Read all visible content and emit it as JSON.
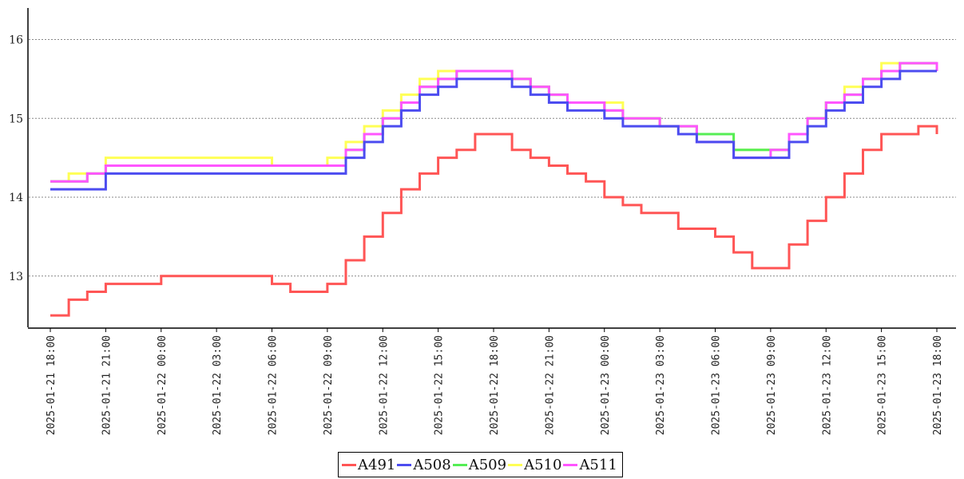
{
  "chart_data": {
    "type": "line",
    "title": "",
    "xlabel": "",
    "ylabel": "",
    "ylim": [
      12.4,
      16.4
    ],
    "yticks": [
      13,
      14,
      15,
      16
    ],
    "xticks": [
      "2025-01-21 18:00",
      "2025-01-21 21:00",
      "2025-01-22 00:00",
      "2025-01-22 03:00",
      "2025-01-22 06:00",
      "2025-01-22 09:00",
      "2025-01-22 12:00",
      "2025-01-22 15:00",
      "2025-01-22 18:00",
      "2025-01-22 21:00",
      "2025-01-23 00:00",
      "2025-01-23 03:00",
      "2025-01-23 06:00",
      "2025-01-23 09:00",
      "2025-01-23 12:00",
      "2025-01-23 15:00",
      "2025-01-23 18:00"
    ],
    "grid": "horizontal-dashed",
    "legend_position": "bottom-center",
    "series": [
      {
        "name": "A491",
        "color": "#ff5555",
        "x": [
          "2025-01-21 18:00",
          "2025-01-21 19:00",
          "2025-01-21 20:00",
          "2025-01-21 21:00",
          "2025-01-21 22:00",
          "2025-01-22 00:00",
          "2025-01-22 02:00",
          "2025-01-22 03:00",
          "2025-01-22 05:00",
          "2025-01-22 06:00",
          "2025-01-22 07:00",
          "2025-01-22 08:00",
          "2025-01-22 09:00",
          "2025-01-22 10:00",
          "2025-01-22 11:00",
          "2025-01-22 12:00",
          "2025-01-22 13:00",
          "2025-01-22 14:00",
          "2025-01-22 15:00",
          "2025-01-22 16:00",
          "2025-01-22 17:00",
          "2025-01-22 18:00",
          "2025-01-22 19:00",
          "2025-01-22 20:00",
          "2025-01-22 21:00",
          "2025-01-22 22:00",
          "2025-01-22 23:00",
          "2025-01-23 00:00",
          "2025-01-23 01:00",
          "2025-01-23 02:00",
          "2025-01-23 04:00",
          "2025-01-23 05:00",
          "2025-01-23 06:00",
          "2025-01-23 07:00",
          "2025-01-23 08:00",
          "2025-01-23 09:00",
          "2025-01-23 10:00",
          "2025-01-23 11:00",
          "2025-01-23 12:00",
          "2025-01-23 13:00",
          "2025-01-23 14:00",
          "2025-01-23 15:00",
          "2025-01-23 16:00",
          "2025-01-23 17:00",
          "2025-01-23 18:00"
        ],
        "values": [
          12.5,
          12.7,
          12.8,
          12.9,
          12.9,
          13.0,
          13.0,
          13.0,
          13.0,
          12.9,
          12.8,
          12.8,
          12.9,
          13.2,
          13.5,
          13.8,
          14.1,
          14.3,
          14.5,
          14.6,
          14.8,
          14.8,
          14.6,
          14.5,
          14.4,
          14.3,
          14.2,
          14.0,
          13.9,
          13.8,
          13.6,
          13.6,
          13.5,
          13.3,
          13.1,
          13.1,
          13.4,
          13.7,
          14.0,
          14.3,
          14.6,
          14.8,
          14.8,
          14.9,
          14.8
        ]
      },
      {
        "name": "A508",
        "color": "#4c4cf0",
        "x": [
          "2025-01-21 18:00",
          "2025-01-21 20:00",
          "2025-01-21 21:00",
          "2025-01-22 03:00",
          "2025-01-22 06:00",
          "2025-01-22 09:00",
          "2025-01-22 10:00",
          "2025-01-22 11:00",
          "2025-01-22 12:00",
          "2025-01-22 13:00",
          "2025-01-22 14:00",
          "2025-01-22 15:00",
          "2025-01-22 16:00",
          "2025-01-22 17:00",
          "2025-01-22 18:00",
          "2025-01-22 19:00",
          "2025-01-22 20:00",
          "2025-01-22 21:00",
          "2025-01-22 22:00",
          "2025-01-23 00:00",
          "2025-01-23 01:00",
          "2025-01-23 02:00",
          "2025-01-23 04:00",
          "2025-01-23 05:00",
          "2025-01-23 07:00",
          "2025-01-23 09:00",
          "2025-01-23 10:00",
          "2025-01-23 11:00",
          "2025-01-23 12:00",
          "2025-01-23 13:00",
          "2025-01-23 14:00",
          "2025-01-23 15:00",
          "2025-01-23 16:00",
          "2025-01-23 18:00"
        ],
        "values": [
          14.1,
          14.1,
          14.3,
          14.3,
          14.3,
          14.3,
          14.5,
          14.7,
          14.9,
          15.1,
          15.3,
          15.4,
          15.5,
          15.5,
          15.5,
          15.4,
          15.3,
          15.2,
          15.1,
          15.0,
          14.9,
          14.9,
          14.8,
          14.7,
          14.5,
          14.5,
          14.7,
          14.9,
          15.1,
          15.2,
          15.4,
          15.5,
          15.6,
          15.6
        ]
      },
      {
        "name": "A509",
        "color": "#55ee55",
        "x": [
          "2025-01-21 18:00",
          "2025-01-21 20:00",
          "2025-01-21 21:00",
          "2025-01-22 03:00",
          "2025-01-22 06:00",
          "2025-01-22 09:00",
          "2025-01-22 10:00",
          "2025-01-22 11:00",
          "2025-01-22 12:00",
          "2025-01-22 13:00",
          "2025-01-22 14:00",
          "2025-01-22 15:00",
          "2025-01-22 16:00",
          "2025-01-22 18:00",
          "2025-01-22 19:00",
          "2025-01-22 20:00",
          "2025-01-22 21:00",
          "2025-01-22 22:00",
          "2025-01-23 00:00",
          "2025-01-23 01:00",
          "2025-01-23 03:00",
          "2025-01-23 05:00",
          "2025-01-23 07:00",
          "2025-01-23 09:00",
          "2025-01-23 10:00",
          "2025-01-23 11:00",
          "2025-01-23 12:00",
          "2025-01-23 13:00",
          "2025-01-23 14:00",
          "2025-01-23 15:00",
          "2025-01-23 16:00",
          "2025-01-23 18:00"
        ],
        "values": [
          14.2,
          14.3,
          14.4,
          14.4,
          14.4,
          14.4,
          14.6,
          14.8,
          15.0,
          15.2,
          15.4,
          15.5,
          15.6,
          15.6,
          15.5,
          15.4,
          15.3,
          15.2,
          15.1,
          15.0,
          14.9,
          14.8,
          14.6,
          14.6,
          14.8,
          15.0,
          15.2,
          15.3,
          15.5,
          15.6,
          15.7,
          15.7
        ]
      },
      {
        "name": "A510",
        "color": "#ffff55",
        "x": [
          "2025-01-21 18:00",
          "2025-01-21 19:00",
          "2025-01-21 21:00",
          "2025-01-22 03:00",
          "2025-01-22 06:00",
          "2025-01-22 09:00",
          "2025-01-22 10:00",
          "2025-01-22 11:00",
          "2025-01-22 12:00",
          "2025-01-22 13:00",
          "2025-01-22 14:00",
          "2025-01-22 15:00",
          "2025-01-22 16:00",
          "2025-01-22 18:00",
          "2025-01-22 19:00",
          "2025-01-22 20:00",
          "2025-01-22 21:00",
          "2025-01-22 22:00",
          "2025-01-23 00:00",
          "2025-01-23 01:00",
          "2025-01-23 03:00",
          "2025-01-23 05:00",
          "2025-01-23 07:00",
          "2025-01-23 09:00",
          "2025-01-23 10:00",
          "2025-01-23 11:00",
          "2025-01-23 12:00",
          "2025-01-23 13:00",
          "2025-01-23 14:00",
          "2025-01-23 15:00",
          "2025-01-23 16:00",
          "2025-01-23 18:00"
        ],
        "values": [
          14.2,
          14.3,
          14.5,
          14.5,
          14.4,
          14.5,
          14.7,
          14.9,
          15.1,
          15.3,
          15.5,
          15.6,
          15.6,
          15.6,
          15.5,
          15.4,
          15.3,
          15.2,
          15.2,
          15.0,
          14.9,
          14.8,
          14.6,
          14.6,
          14.8,
          15.0,
          15.2,
          15.4,
          15.5,
          15.7,
          15.7,
          15.7
        ]
      },
      {
        "name": "A511",
        "color": "#ff55ff",
        "x": [
          "2025-01-21 18:00",
          "2025-01-21 20:00",
          "2025-01-21 21:00",
          "2025-01-22 03:00",
          "2025-01-22 06:00",
          "2025-01-22 09:00",
          "2025-01-22 10:00",
          "2025-01-22 11:00",
          "2025-01-22 12:00",
          "2025-01-22 13:00",
          "2025-01-22 14:00",
          "2025-01-22 15:00",
          "2025-01-22 16:00",
          "2025-01-22 18:00",
          "2025-01-22 19:00",
          "2025-01-22 20:00",
          "2025-01-22 21:00",
          "2025-01-22 22:00",
          "2025-01-23 00:00",
          "2025-01-23 01:00",
          "2025-01-23 03:00",
          "2025-01-23 05:00",
          "2025-01-23 07:00",
          "2025-01-23 09:00",
          "2025-01-23 10:00",
          "2025-01-23 11:00",
          "2025-01-23 12:00",
          "2025-01-23 13:00",
          "2025-01-23 14:00",
          "2025-01-23 15:00",
          "2025-01-23 16:00",
          "2025-01-23 18:00"
        ],
        "values": [
          14.2,
          14.3,
          14.4,
          14.4,
          14.4,
          14.4,
          14.6,
          14.8,
          15.0,
          15.2,
          15.4,
          15.5,
          15.6,
          15.6,
          15.5,
          15.4,
          15.3,
          15.2,
          15.1,
          15.0,
          14.9,
          14.7,
          14.5,
          14.6,
          14.8,
          15.0,
          15.2,
          15.3,
          15.5,
          15.6,
          15.7,
          15.6
        ]
      }
    ]
  }
}
